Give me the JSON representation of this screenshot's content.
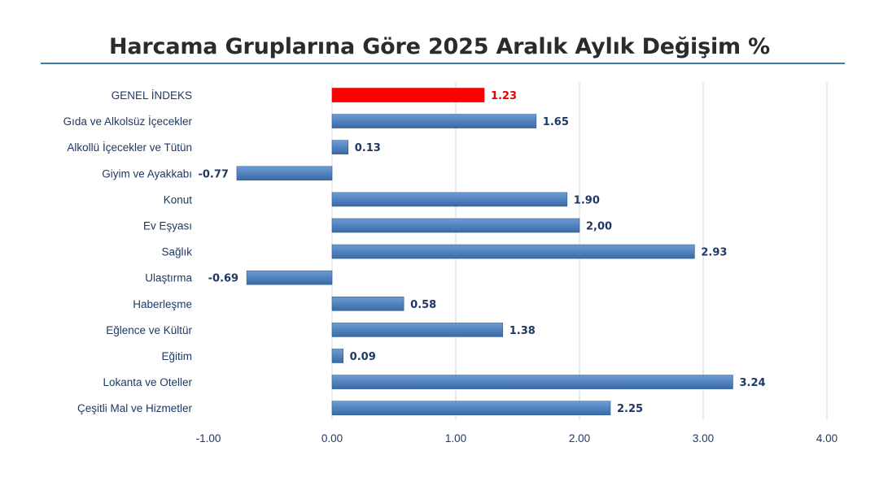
{
  "chart_data": {
    "type": "bar",
    "orientation": "horizontal",
    "title": "Harcama Gruplarına Göre 2025 Aralık Aylık Değişim %",
    "categories": [
      "GENEL İNDEKS",
      "Gıda ve Alkolsüz İçecekler",
      "Alkollü İçecekler ve Tütün",
      "Giyim ve Ayakkabı",
      "Konut",
      "Ev Eşyası",
      "Sağlık",
      "Ulaştırma",
      "Haberleşme",
      "Eğlence ve Kültür",
      "Eğitim",
      "Lokanta ve Oteller",
      "Çeşitli Mal ve Hizmetler"
    ],
    "values": [
      1.23,
      1.65,
      0.13,
      -0.77,
      1.9,
      2.0,
      2.93,
      -0.69,
      0.58,
      1.38,
      0.09,
      3.24,
      2.25
    ],
    "value_labels": [
      "1.23",
      "1.65",
      "0.13",
      "-0.77",
      "1.90",
      "2,00",
      "2.93",
      "-0.69",
      "0.58",
      "1.38",
      "0.09",
      "3.24",
      "2.25"
    ],
    "highlight_index": 0,
    "xlim": [
      -1.0,
      4.0
    ],
    "xticks": [
      -1.0,
      0.0,
      1.0,
      2.0,
      3.0,
      4.0
    ],
    "xtick_labels": [
      "-1.00",
      "0.00",
      "1.00",
      "2.00",
      "3.00",
      "4.00"
    ],
    "grid": "vertical",
    "legend": "none",
    "colors": {
      "bar": "#4f81bd",
      "bar_dark": "#2f5f96",
      "highlight": "#ff0000",
      "highlight_label": "#e60000",
      "text": "#1f3864",
      "grid": "#c9d3e6",
      "rule": "#3a7ca5"
    }
  }
}
